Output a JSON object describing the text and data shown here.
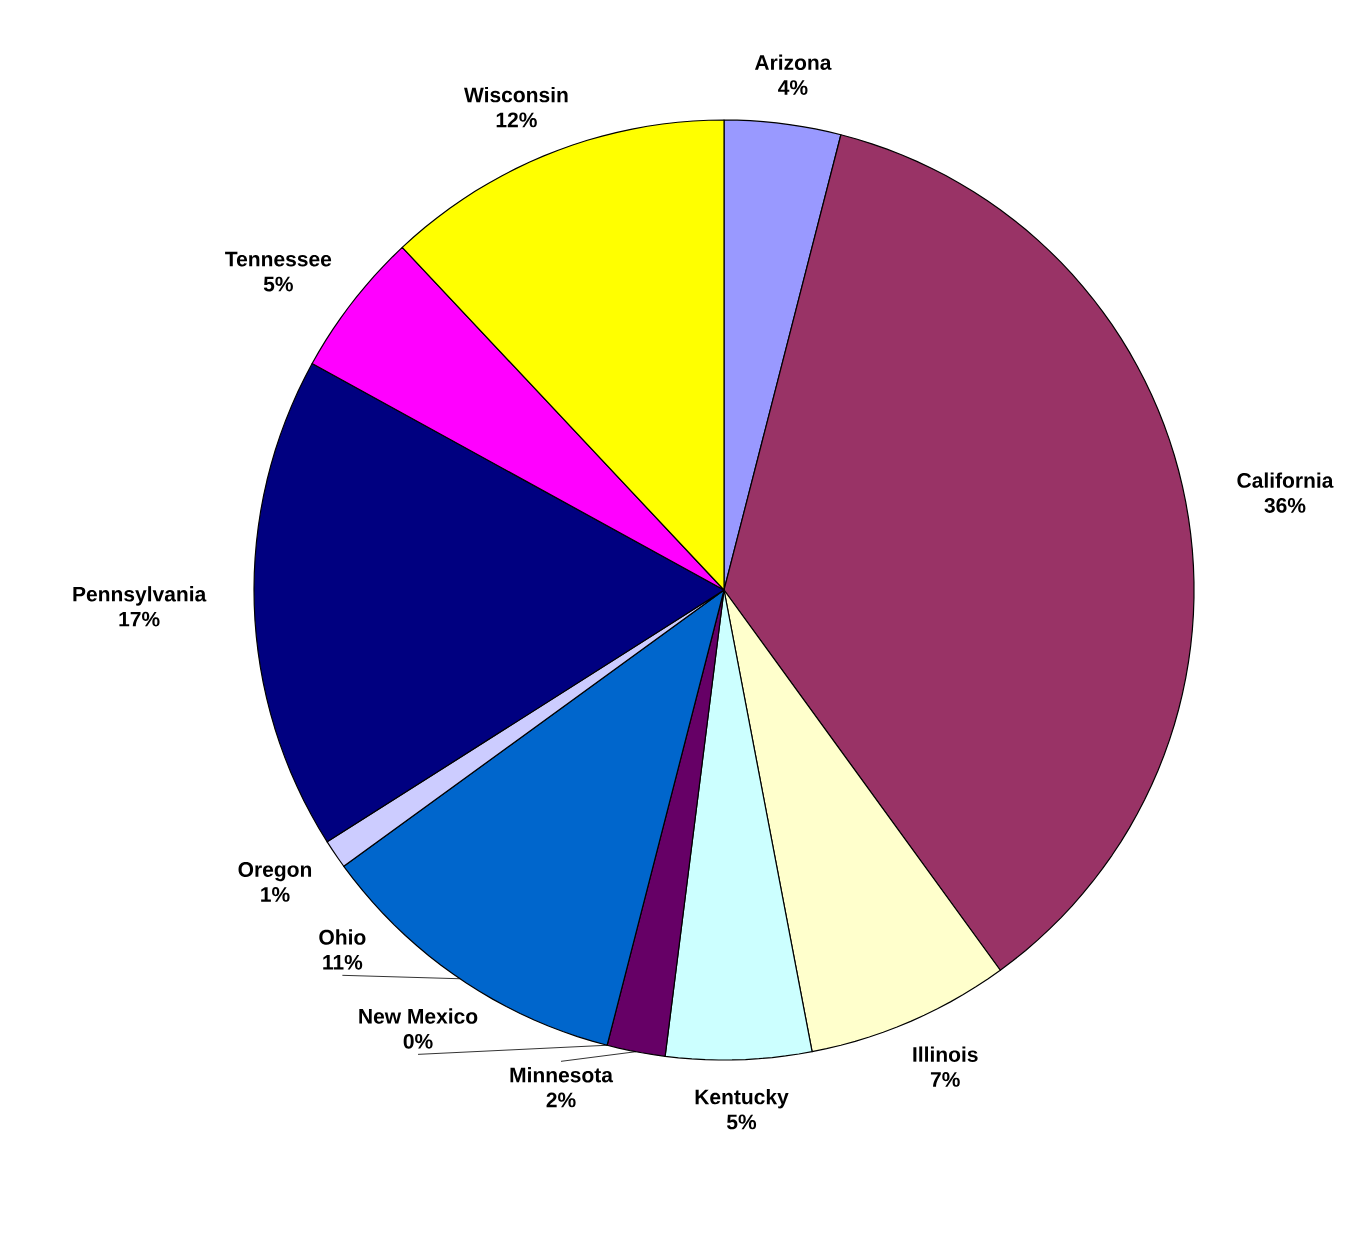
{
  "chart_data": {
    "type": "pie",
    "categories": [
      "Arizona",
      "California",
      "Illinois",
      "Kentucky",
      "Minnesota",
      "New Mexico",
      "Ohio",
      "Oregon",
      "Pennsylvania",
      "Tennessee",
      "Wisconsin"
    ],
    "values": [
      4,
      36,
      7,
      5,
      2,
      0,
      11,
      1,
      17,
      5,
      12
    ],
    "value_labels": [
      "4%",
      "36%",
      "7%",
      "5%",
      "2%",
      "0%",
      "11%",
      "1%",
      "17%",
      "5%",
      "12%"
    ],
    "colors": [
      "#9999ff",
      "#993366",
      "#ffffcc",
      "#ccffff",
      "#660066",
      "#ff8080",
      "#0066cc",
      "#ccccff",
      "#000080",
      "#ff00ff",
      "#ffff00"
    ]
  }
}
